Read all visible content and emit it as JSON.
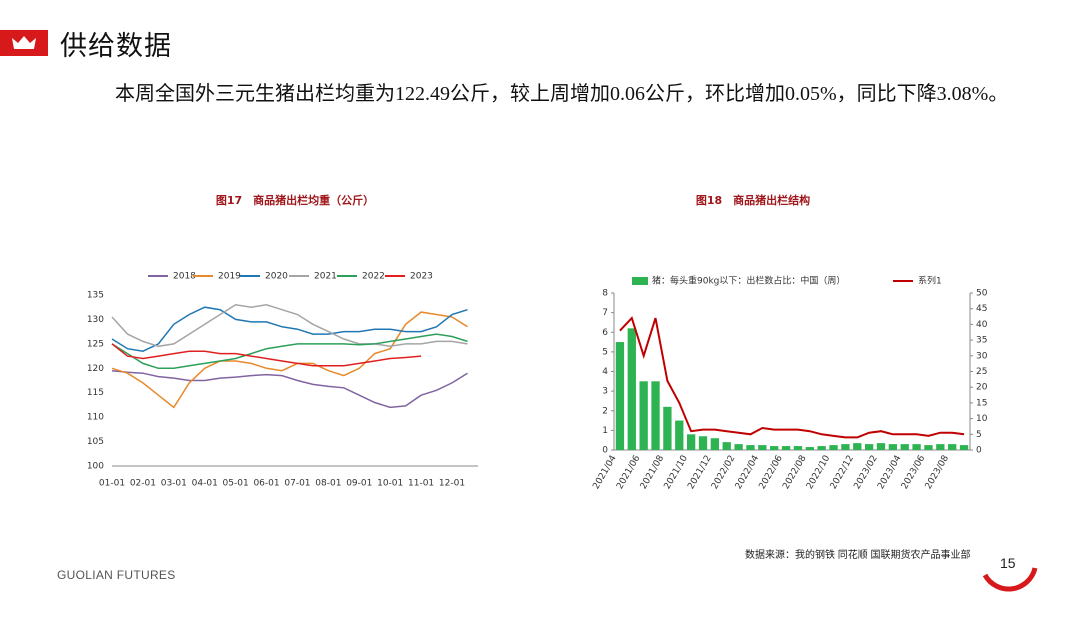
{
  "header": {
    "title": "供给数据"
  },
  "body": "本周全国外三元生猪出栏均重为122.49公斤，较上周增加0.06公斤，环比增加0.05%，同比下降3.08%。",
  "chart_data": [
    {
      "type": "line",
      "title": "图17　商品猪出栏均重（公斤）",
      "categories": [
        "01-01",
        null,
        "02-01",
        null,
        "03-01",
        null,
        "04-01",
        null,
        "05-01",
        null,
        "06-01",
        null,
        "07-01",
        null,
        "08-01",
        null,
        "09-01",
        null,
        "10-01",
        null,
        "11-01",
        null,
        "12-01",
        null
      ],
      "ylim": [
        100,
        135
      ],
      "yticks": [
        100,
        105,
        110,
        115,
        120,
        125,
        130,
        135
      ],
      "grid": false,
      "legend": "top",
      "series": [
        {
          "name": "2018",
          "color": "#8064a2",
          "values": [
            119.5,
            119.2,
            119,
            118.3,
            118,
            117.5,
            117.5,
            118,
            118.2,
            118.5,
            118.7,
            118.5,
            117.5,
            116.7,
            116.3,
            116,
            114.5,
            113,
            112,
            112.3,
            114.5,
            115.5,
            117,
            119
          ]
        },
        {
          "name": "2019",
          "color": "#e8892b",
          "values": [
            120,
            119,
            117,
            114.5,
            112,
            117,
            120,
            121.5,
            121.5,
            121,
            120,
            119.5,
            121,
            121,
            119.5,
            118.5,
            120,
            123,
            124,
            129,
            131.5,
            131,
            130.5,
            128.5
          ]
        },
        {
          "name": "2020",
          "color": "#1f77b4",
          "values": [
            126,
            124,
            123.5,
            125,
            129,
            131,
            132.5,
            132,
            130,
            129.5,
            129.5,
            128.5,
            128,
            127,
            127,
            127.5,
            127.5,
            128,
            128,
            127.5,
            127.5,
            128.5,
            131,
            132
          ]
        },
        {
          "name": "2021",
          "color": "#a5a5a5",
          "values": [
            130.5,
            127,
            125.5,
            124.5,
            125,
            127,
            129,
            131,
            133,
            132.5,
            133,
            132,
            131,
            129,
            127.5,
            126,
            125,
            125,
            124.5,
            125,
            125,
            125.5,
            125.5,
            125
          ]
        },
        {
          "name": "2022",
          "color": "#2ca05a",
          "values": [
            125,
            123,
            121,
            120,
            120,
            120.5,
            121,
            121.5,
            122,
            123,
            124,
            124.5,
            125,
            125,
            125,
            125,
            124.8,
            125,
            125.5,
            126,
            126.5,
            127,
            126.5,
            125.5
          ]
        },
        {
          "name": "2023",
          "color": "#e02020",
          "values": [
            125,
            122.5,
            122,
            122.5,
            123,
            123.5,
            123.5,
            123,
            123,
            122.5,
            122,
            121.5,
            121,
            120.5,
            120.5,
            120.5,
            121,
            121.5,
            122,
            122.2,
            122.5,
            null,
            null,
            null
          ]
        }
      ]
    },
    {
      "type": "bar",
      "title": "图18　商品猪出栏结构",
      "categories": [
        "2021/04",
        null,
        "2021/06",
        null,
        "2021/08",
        null,
        "2021/10",
        null,
        "2021/12",
        null,
        "2022/02",
        null,
        "2022/04",
        null,
        "2022/06",
        null,
        "2022/08",
        null,
        "2022/10",
        null,
        "2022/12",
        null,
        "2023/02",
        null,
        "2023/04",
        null,
        "2023/06",
        null,
        "2023/08",
        null
      ],
      "ylim": [
        0,
        8
      ],
      "yticks": [
        0,
        1,
        2,
        3,
        4,
        5,
        6,
        7,
        8
      ],
      "y2lim": [
        0,
        50
      ],
      "y2ticks": [
        0,
        5,
        10,
        15,
        20,
        25,
        30,
        35,
        40,
        45,
        50
      ],
      "grid": false,
      "legend": "top",
      "series": [
        {
          "name": "猪：每头重90kg以下：出栏数占比：中国（周）",
          "type": "bar",
          "color": "#2eb352",
          "values": [
            5.5,
            6.2,
            3.5,
            3.5,
            2.2,
            1.5,
            0.8,
            0.7,
            0.6,
            0.4,
            0.3,
            0.25,
            0.25,
            0.2,
            0.2,
            0.2,
            0.15,
            0.2,
            0.25,
            0.3,
            0.35,
            0.3,
            0.35,
            0.3,
            0.3,
            0.3,
            0.25,
            0.3,
            0.3,
            0.25
          ]
        },
        {
          "name": "系列1",
          "type": "line",
          "axis": "y2",
          "color": "#c00000",
          "values": [
            38,
            42,
            30,
            42,
            22,
            15,
            6,
            6.5,
            6.5,
            6,
            5.5,
            5,
            7,
            6.5,
            6.5,
            6.5,
            6,
            5,
            4.5,
            4,
            4,
            5.5,
            6,
            5,
            5,
            5,
            4.5,
            5.5,
            5.5,
            5
          ]
        }
      ]
    }
  ],
  "source": "数据来源：我的钢铁  同花顺  国联期货农产品事业部",
  "footer": {
    "brand": "GUOLIAN FUTURES",
    "page": "15"
  }
}
